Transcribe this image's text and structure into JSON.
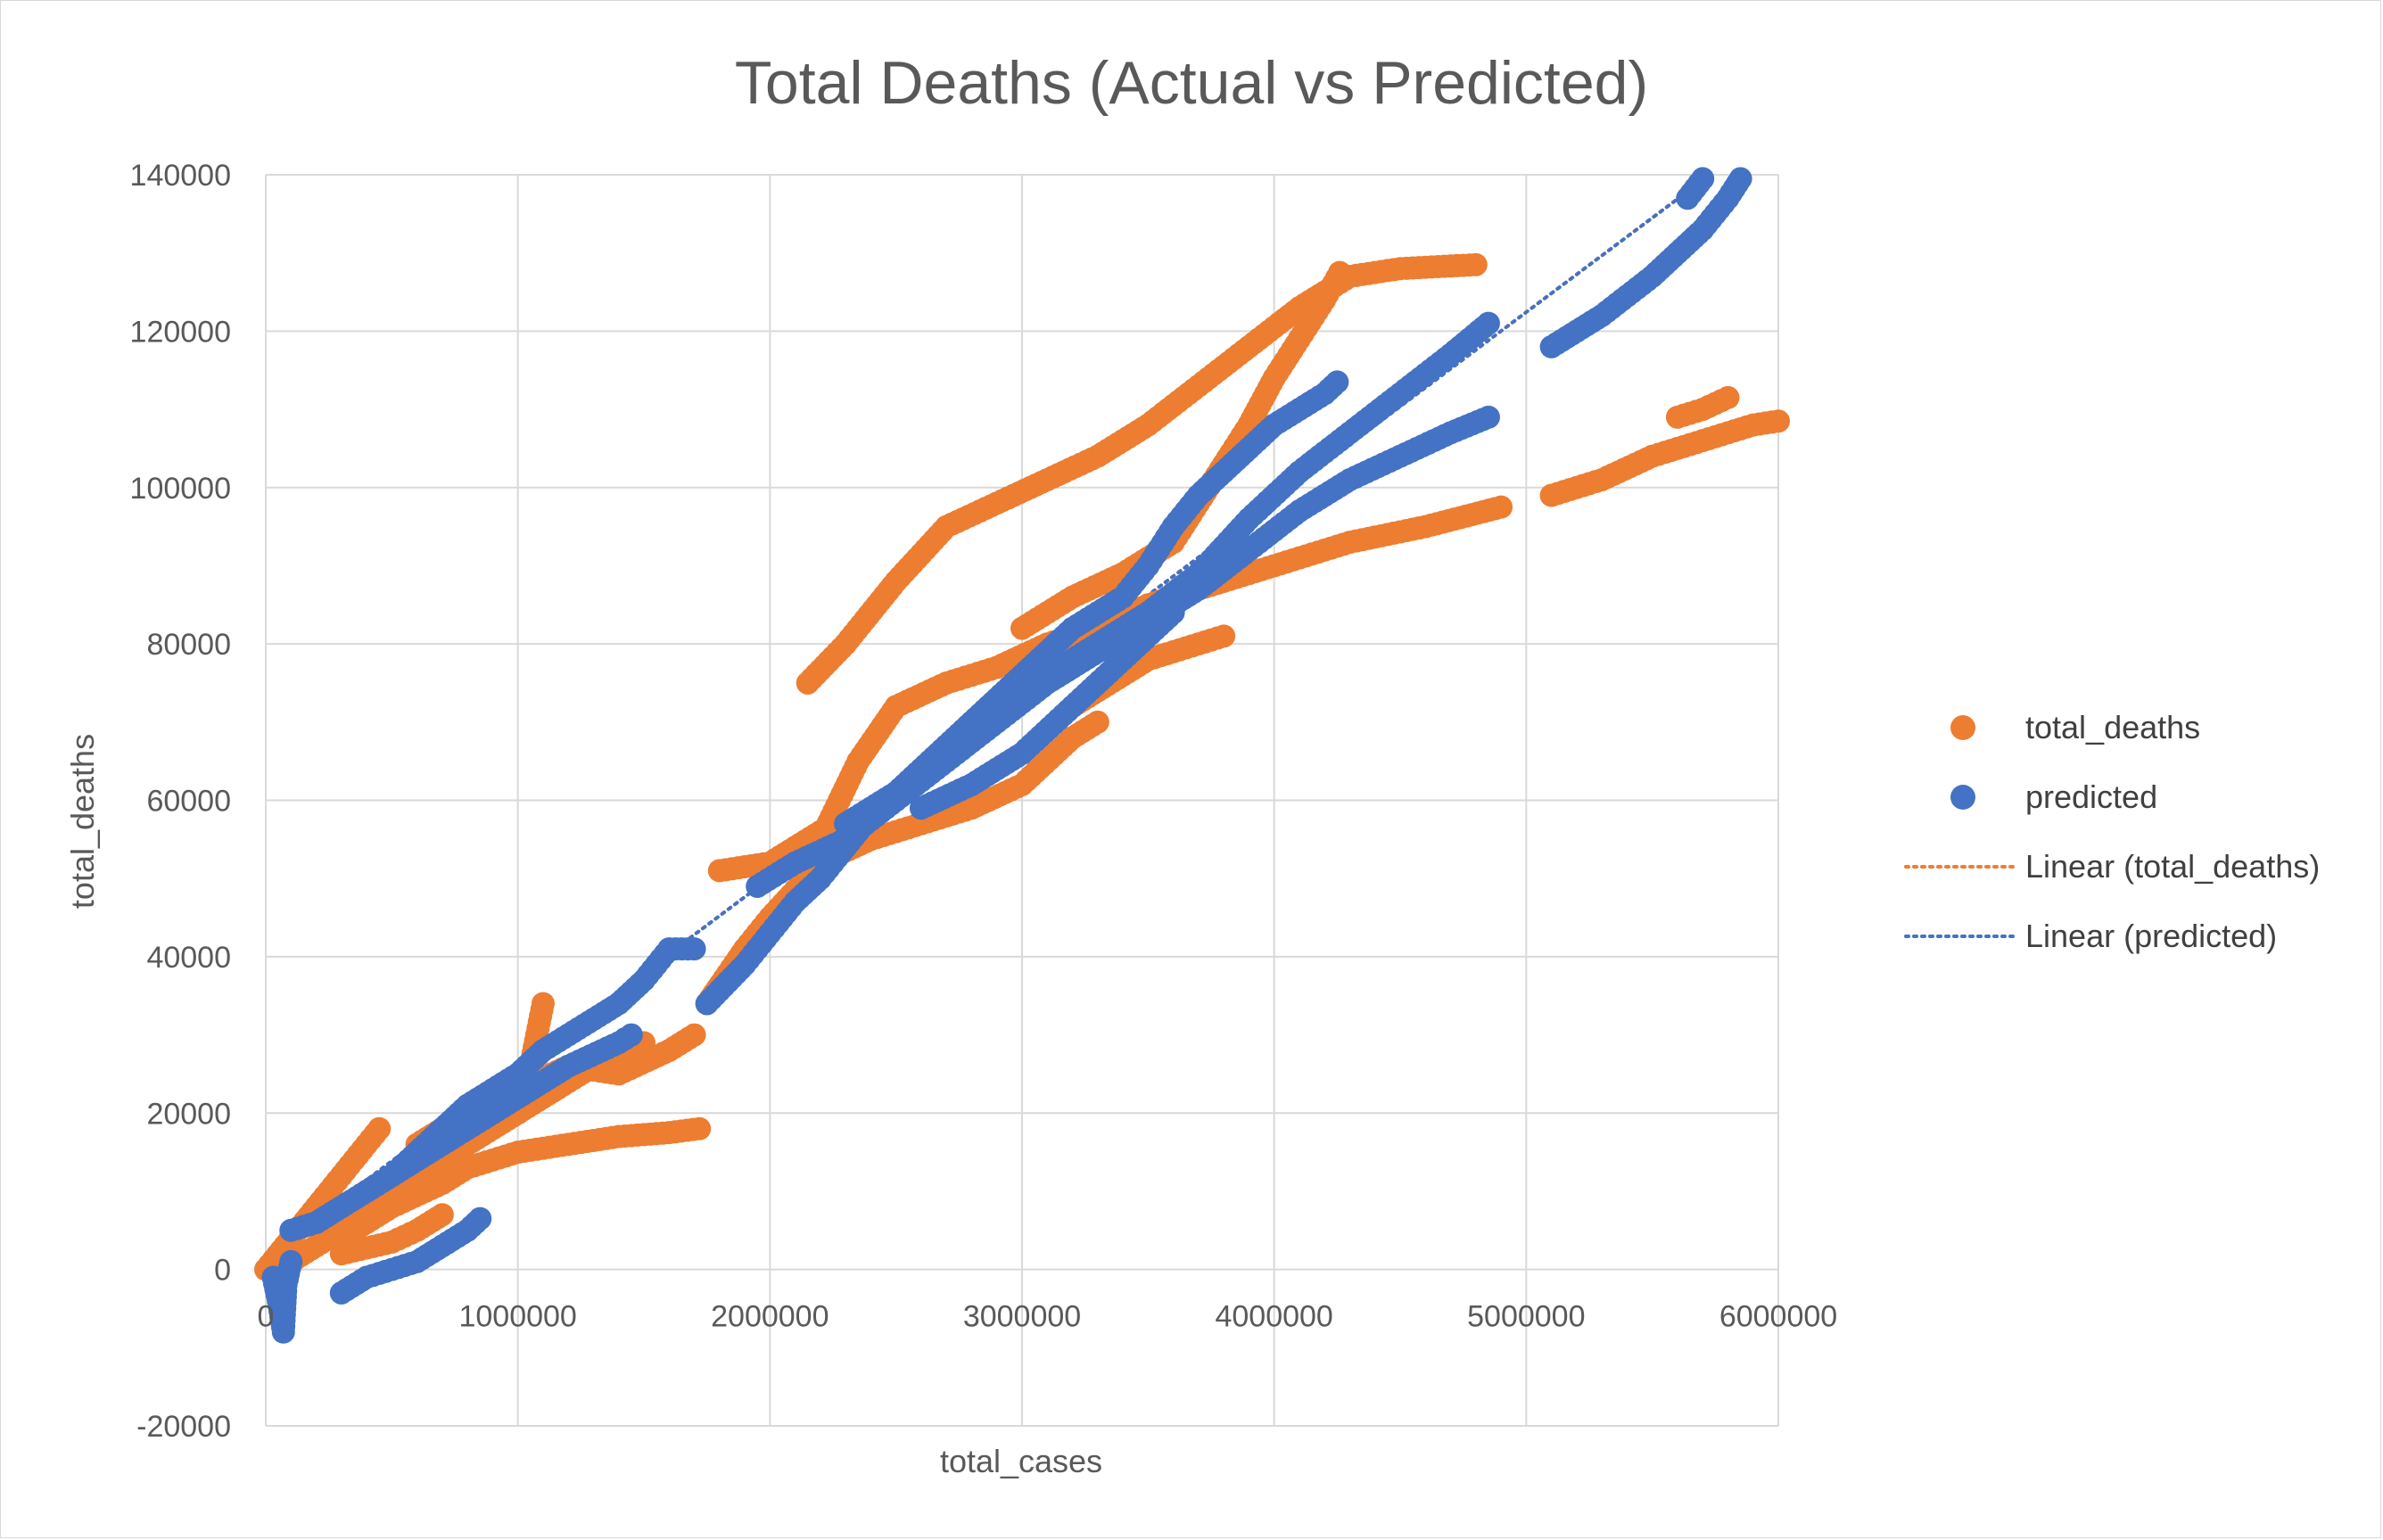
{
  "chart_data": {
    "type": "scatter",
    "title": "Total Deaths (Actual vs Predicted)",
    "xlabel": "total_cases",
    "ylabel": "total_deaths",
    "xlim": [
      0,
      6000000
    ],
    "ylim": [
      -20000,
      140000
    ],
    "x_ticks": [
      0,
      1000000,
      2000000,
      3000000,
      4000000,
      5000000,
      6000000
    ],
    "y_ticks": [
      -20000,
      0,
      20000,
      40000,
      60000,
      80000,
      100000,
      120000,
      140000
    ],
    "x_tick_labels": [
      "0",
      "1000000",
      "2000000",
      "3000000",
      "4000000",
      "5000000",
      "6000000"
    ],
    "y_tick_labels": [
      "-20000",
      "0",
      "20000",
      "40000",
      "60000",
      "80000",
      "100000",
      "120000",
      "140000"
    ],
    "grid": true,
    "legend_position": "right",
    "series": [
      {
        "name": "total_deaths",
        "color": "#ED7D31",
        "marker": "circle",
        "segments": [
          [
            [
              0,
              0
            ],
            [
              200000,
              8000
            ],
            [
              300000,
              12000
            ],
            [
              400000,
              16000
            ],
            [
              450000,
              18000
            ]
          ],
          [
            [
              100000,
              1000
            ],
            [
              300000,
              5000
            ],
            [
              500000,
              9000
            ],
            [
              700000,
              14000
            ],
            [
              900000,
              18000
            ],
            [
              1100000,
              22000
            ],
            [
              1300000,
              26000
            ],
            [
              1500000,
              29000
            ]
          ],
          [
            [
              300000,
              4000
            ],
            [
              500000,
              8000
            ],
            [
              700000,
              11000
            ],
            [
              800000,
              13000
            ],
            [
              1000000,
              15000
            ],
            [
              1200000,
              16000
            ],
            [
              1400000,
              17000
            ],
            [
              1600000,
              17500
            ],
            [
              1720000,
              18000
            ]
          ],
          [
            [
              300000,
              2000
            ],
            [
              500000,
              3500
            ],
            [
              600000,
              5000
            ],
            [
              700000,
              7000
            ]
          ],
          [
            [
              600000,
              16000
            ],
            [
              800000,
              20000
            ],
            [
              1000000,
              23000
            ],
            [
              1100000,
              24000
            ]
          ],
          [
            [
              1000000,
              20000
            ],
            [
              1050000,
              26000
            ],
            [
              1100000,
              34000
            ]
          ],
          [
            [
              1000000,
              23000
            ],
            [
              1200000,
              26000
            ],
            [
              1400000,
              25000
            ],
            [
              1600000,
              28000
            ],
            [
              1700000,
              30000
            ]
          ],
          [
            [
              1750000,
              34000
            ],
            [
              1900000,
              41000
            ],
            [
              2000000,
              45000
            ],
            [
              2200000,
              52000
            ],
            [
              2400000,
              55000
            ],
            [
              2600000,
              57000
            ],
            [
              2800000,
              59000
            ],
            [
              3000000,
              62000
            ],
            [
              3200000,
              68000
            ],
            [
              3300000,
              70000
            ]
          ],
          [
            [
              1800000,
              51000
            ],
            [
              2000000,
              52000
            ],
            [
              2200000,
              56000
            ]
          ],
          [
            [
              2150000,
              75000
            ],
            [
              2300000,
              80000
            ],
            [
              2500000,
              88000
            ],
            [
              2700000,
              95000
            ],
            [
              2900000,
              98000
            ],
            [
              3100000,
              101000
            ],
            [
              3300000,
              104000
            ],
            [
              3500000,
              108000
            ],
            [
              3700000,
              113000
            ],
            [
              3900000,
              118000
            ],
            [
              4100000,
              123000
            ],
            [
              4300000,
              127000
            ],
            [
              4500000,
              128000
            ],
            [
              4800000,
              128500
            ]
          ],
          [
            [
              2200000,
              55000
            ],
            [
              2350000,
              65000
            ],
            [
              2500000,
              72000
            ],
            [
              2700000,
              75000
            ],
            [
              2900000,
              77000
            ],
            [
              3100000,
              80000
            ],
            [
              3300000,
              82000
            ],
            [
              3500000,
              85000
            ],
            [
              3700000,
              87000
            ],
            [
              3900000,
              89000
            ],
            [
              4100000,
              91000
            ],
            [
              4300000,
              93000
            ],
            [
              4600000,
              95000
            ],
            [
              4900000,
              97500
            ]
          ],
          [
            [
              3000000,
              82000
            ],
            [
              3200000,
              86000
            ],
            [
              3400000,
              89000
            ],
            [
              3600000,
              93000
            ],
            [
              3700000,
              98000
            ],
            [
              3800000,
              103000
            ],
            [
              3900000,
              108000
            ],
            [
              4000000,
              114000
            ],
            [
              4100000,
              119000
            ],
            [
              4200000,
              124000
            ],
            [
              4260000,
              127500
            ]
          ],
          [
            [
              3200000,
              72000
            ],
            [
              3400000,
              76000
            ],
            [
              3500000,
              78000
            ],
            [
              3600000,
              79000
            ],
            [
              3800000,
              81000
            ]
          ],
          [
            [
              5100000,
              99000
            ],
            [
              5300000,
              101000
            ],
            [
              5500000,
              104000
            ],
            [
              5700000,
              106000
            ],
            [
              5900000,
              108000
            ],
            [
              6000000,
              108500
            ]
          ],
          [
            [
              5600000,
              109000
            ],
            [
              5700000,
              110000
            ],
            [
              5800000,
              111500
            ]
          ]
        ]
      },
      {
        "name": "predicted",
        "color": "#4472C4",
        "marker": "circle",
        "segments": [
          [
            [
              30000,
              -1000
            ],
            [
              50000,
              -4000
            ],
            [
              60000,
              -6000
            ],
            [
              70000,
              -8000
            ],
            [
              80000,
              -2000
            ],
            [
              100000,
              1000
            ]
          ],
          [
            [
              100000,
              5000
            ],
            [
              200000,
              6000
            ],
            [
              300000,
              8000
            ],
            [
              400000,
              10000
            ],
            [
              500000,
              12000
            ],
            [
              600000,
              15000
            ],
            [
              700000,
              18000
            ],
            [
              800000,
              21000
            ],
            [
              900000,
              23000
            ],
            [
              1000000,
              25000
            ],
            [
              1100000,
              28000
            ],
            [
              1200000,
              30000
            ],
            [
              1300000,
              32000
            ],
            [
              1400000,
              34000
            ],
            [
              1500000,
              37000
            ],
            [
              1600000,
              41000
            ],
            [
              1700000,
              41000
            ]
          ],
          [
            [
              300000,
              -3000
            ],
            [
              400000,
              -1000
            ],
            [
              500000,
              0
            ],
            [
              600000,
              1000
            ],
            [
              700000,
              3000
            ],
            [
              800000,
              5000
            ],
            [
              850000,
              6500
            ]
          ],
          [
            [
              400000,
              10000
            ],
            [
              600000,
              14000
            ],
            [
              800000,
              18000
            ],
            [
              1000000,
              22000
            ],
            [
              1200000,
              26000
            ],
            [
              1400000,
              29000
            ],
            [
              1450000,
              30000
            ]
          ],
          [
            [
              1750000,
              34000
            ],
            [
              1900000,
              39000
            ],
            [
              2000000,
              43000
            ],
            [
              2100000,
              47000
            ],
            [
              2200000,
              50000
            ],
            [
              2300000,
              54000
            ],
            [
              2400000,
              58000
            ],
            [
              2500000,
              61000
            ],
            [
              2600000,
              64000
            ],
            [
              2700000,
              67000
            ],
            [
              2800000,
              70000
            ],
            [
              2900000,
              73000
            ],
            [
              3000000,
              76000
            ],
            [
              3100000,
              79000
            ],
            [
              3200000,
              82000
            ],
            [
              3400000,
              86000
            ],
            [
              3500000,
              90000
            ],
            [
              3600000,
              95000
            ],
            [
              3700000,
              99000
            ],
            [
              3800000,
              102000
            ],
            [
              3900000,
              105000
            ],
            [
              4000000,
              108000
            ],
            [
              4100000,
              110000
            ],
            [
              4200000,
              112000
            ],
            [
              4250000,
              113500
            ]
          ],
          [
            [
              1950000,
              49000
            ],
            [
              2100000,
              52000
            ],
            [
              2300000,
              55000
            ],
            [
              2500000,
              60000
            ],
            [
              2700000,
              65000
            ],
            [
              2900000,
              70000
            ],
            [
              3100000,
              75000
            ],
            [
              3300000,
              79000
            ],
            [
              3500000,
              83000
            ],
            [
              3700000,
              87000
            ],
            [
              3900000,
              92000
            ],
            [
              4100000,
              97000
            ],
            [
              4300000,
              101000
            ],
            [
              4500000,
              104000
            ],
            [
              4700000,
              107000
            ],
            [
              4850000,
              109000
            ]
          ],
          [
            [
              2300000,
              57000
            ],
            [
              2500000,
              61000
            ],
            [
              2700000,
              66000
            ],
            [
              2900000,
              71000
            ],
            [
              3100000,
              76000
            ],
            [
              3300000,
              80000
            ],
            [
              3500000,
              84000
            ],
            [
              3700000,
              89000
            ],
            [
              3900000,
              96000
            ],
            [
              4100000,
              102000
            ],
            [
              4300000,
              107000
            ],
            [
              4500000,
              112000
            ],
            [
              4700000,
              117000
            ],
            [
              4850000,
              121000
            ]
          ],
          [
            [
              2600000,
              59000
            ],
            [
              2800000,
              62000
            ],
            [
              3000000,
              66000
            ],
            [
              3200000,
              72000
            ],
            [
              3400000,
              78000
            ],
            [
              3600000,
              84000
            ]
          ],
          [
            [
              5100000,
              118000
            ],
            [
              5300000,
              122000
            ],
            [
              5500000,
              127000
            ],
            [
              5600000,
              130000
            ],
            [
              5700000,
              133000
            ],
            [
              5800000,
              137000
            ],
            [
              5850000,
              139500
            ]
          ],
          [
            [
              5640000,
              137000
            ],
            [
              5700000,
              139500
            ]
          ]
        ]
      }
    ],
    "trendlines": [
      {
        "name": "Linear (total_deaths)",
        "color": "#ED7D31",
        "style": "dotted",
        "from": [
          0,
          1800
        ],
        "to": [
          5720000,
          139800
        ]
      },
      {
        "name": "Linear (predicted)",
        "color": "#4472C4",
        "style": "dotted",
        "from": [
          0,
          1800
        ],
        "to": [
          5720000,
          139800
        ]
      }
    ]
  }
}
